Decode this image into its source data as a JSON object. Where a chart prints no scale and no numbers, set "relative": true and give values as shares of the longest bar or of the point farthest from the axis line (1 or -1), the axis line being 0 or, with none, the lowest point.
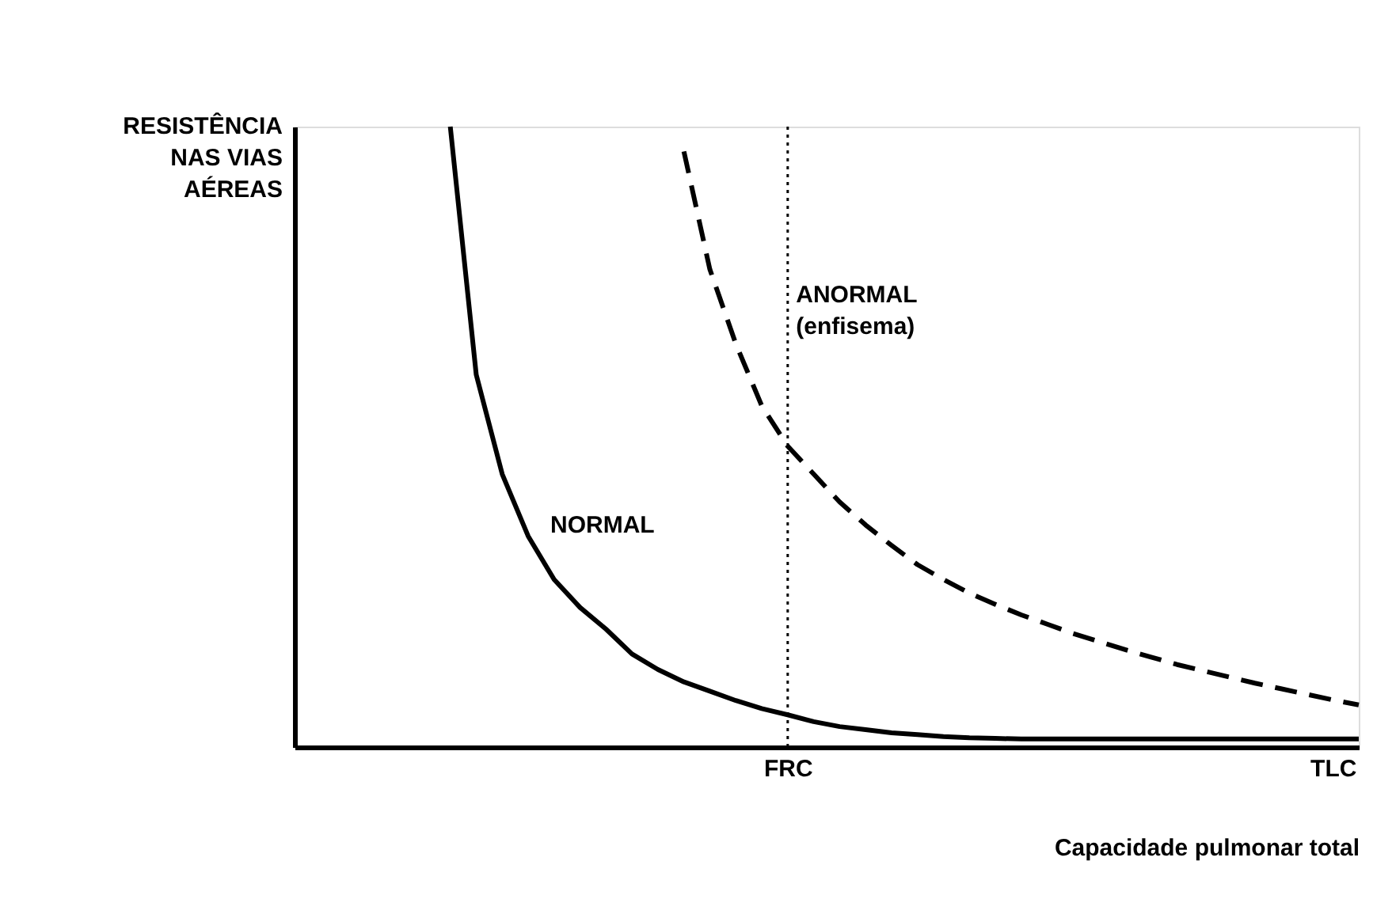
{
  "chart_data": {
    "type": "line",
    "relative": true,
    "ylabel": "RESISTÊNCIA\nNAS VIAS\nAÉREAS",
    "xlabel": "Capacidade pulmonar total",
    "grid": false,
    "legend": false,
    "marker": "none",
    "categories": [
      null,
      null,
      null,
      null,
      null,
      null,
      null,
      null,
      null,
      null,
      null,
      null,
      null,
      null,
      null,
      null,
      null,
      null,
      null,
      "FRC",
      null,
      null,
      null,
      null,
      null,
      null,
      null,
      null,
      null,
      null,
      null,
      null,
      null,
      null,
      null,
      null,
      null,
      null,
      null,
      null,
      "TLC",
      null
    ],
    "series": [
      {
        "name": "NORMAL",
        "color": "#000000",
        "line_style": "solid",
        "values": [
          null,
          null,
          null,
          null,
          null,
          null,
          1,
          0.6,
          0.44,
          0.34,
          0.27,
          0.225,
          0.19,
          0.15,
          0.125,
          0.105,
          0.09,
          0.075,
          0.062,
          0.052,
          0.041,
          0.033,
          0.028,
          0.023,
          0.02,
          0.017,
          0.015,
          0.014,
          0.013,
          0.013,
          0.013,
          0.013,
          0.013,
          0.013,
          0.013,
          0.013,
          0.013,
          0.013,
          0.013,
          0.013,
          0.013,
          0.013
        ]
      },
      {
        "name": "ANORMAL (enfisema)",
        "color": "#000000",
        "line_style": "dashed",
        "values": [
          null,
          null,
          null,
          null,
          null,
          null,
          null,
          null,
          null,
          null,
          null,
          null,
          null,
          null,
          null,
          0.96,
          0.77,
          0.65,
          0.55,
          0.485,
          0.44,
          0.395,
          0.358,
          0.325,
          0.294,
          0.27,
          0.248,
          0.23,
          0.213,
          0.198,
          0.183,
          0.17,
          0.157,
          0.145,
          0.133,
          0.123,
          0.113,
          0.103,
          0.094,
          0.085,
          0.076,
          0.068
        ]
      }
    ],
    "ref_lines": [
      {
        "axis": "x",
        "value": "FRC",
        "line_style": "dotted",
        "color": "#000000"
      }
    ]
  }
}
